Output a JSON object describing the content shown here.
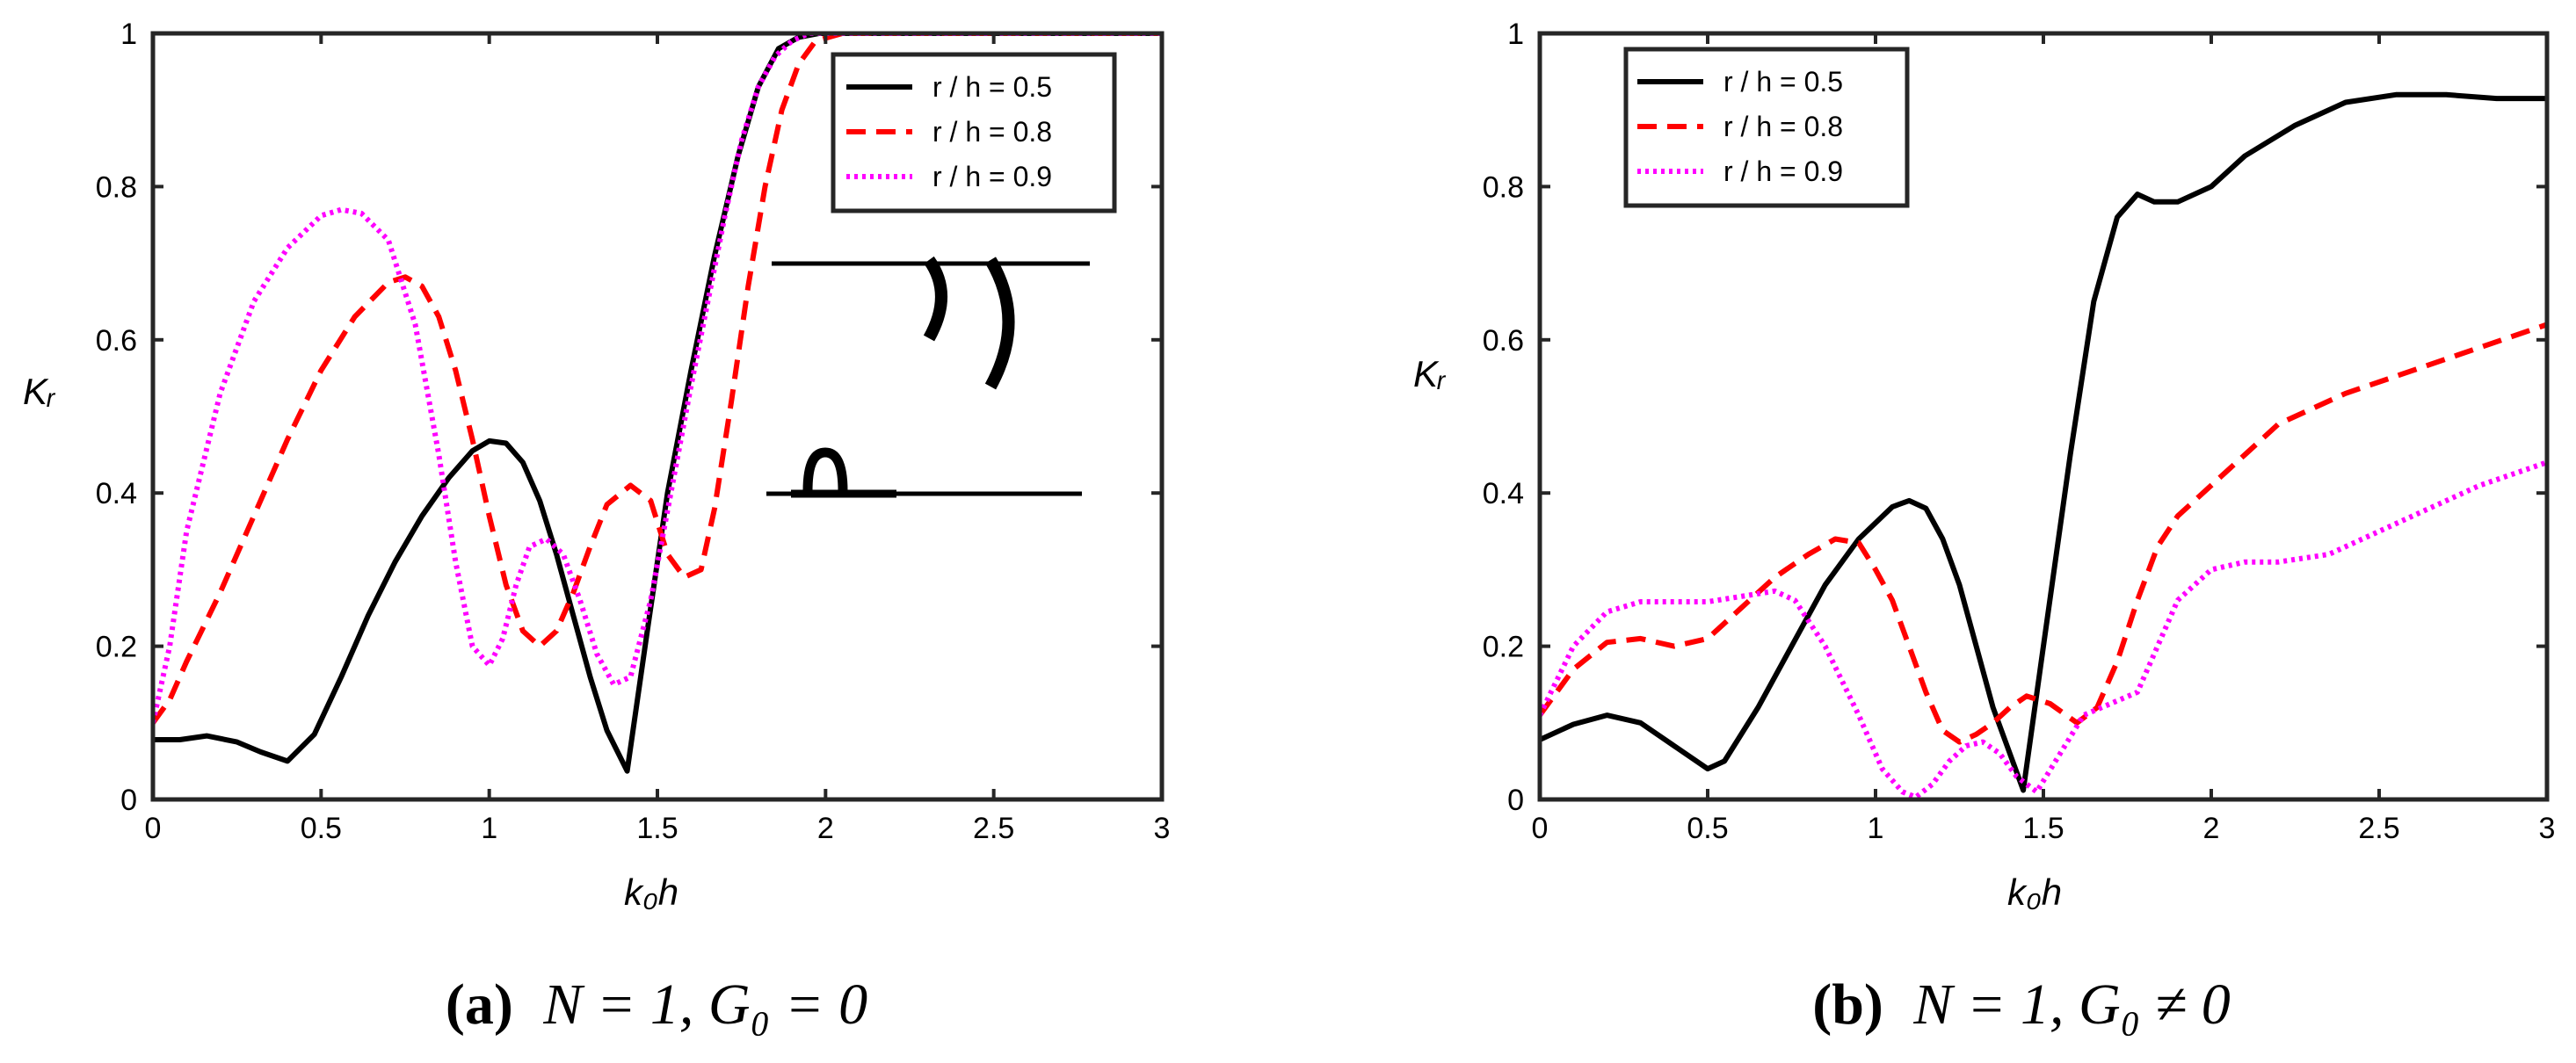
{
  "chart_data": [
    {
      "type": "line",
      "caption": {
        "label": "(a)",
        "text": "N = 1, G₀ = 0"
      },
      "xlabel": "k₀h",
      "ylabel": "Kᵣ",
      "xlim": [
        0,
        3
      ],
      "ylim": [
        0,
        1
      ],
      "xticks": [
        0,
        0.5,
        1,
        1.5,
        2,
        2.5,
        3
      ],
      "xtick_labels": [
        "0",
        "0.5",
        "1",
        "1.5",
        "2",
        "2.5",
        "3"
      ],
      "yticks": [
        0,
        0.2,
        0.4,
        0.6,
        0.8,
        1
      ],
      "ytick_labels": [
        "0",
        "0.2",
        "0.4",
        "0.6",
        "0.8",
        "1"
      ],
      "legend_position": "top-right",
      "inset": "schematic of two curved plates above and a semicircular plate on the lower line",
      "series": [
        {
          "name": "r / h = 0.5",
          "color": "#000000",
          "style": "solid",
          "x": [
            0,
            0.08,
            0.16,
            0.25,
            0.32,
            0.4,
            0.48,
            0.56,
            0.64,
            0.72,
            0.8,
            0.88,
            0.95,
            1.0,
            1.05,
            1.1,
            1.15,
            1.2,
            1.25,
            1.3,
            1.35,
            1.41,
            1.47,
            1.53,
            1.6,
            1.67,
            1.74,
            1.8,
            1.86,
            1.92,
            1.98,
            2.05,
            2.2,
            2.5,
            3.0
          ],
          "y": [
            0.078,
            0.078,
            0.083,
            0.075,
            0.062,
            0.05,
            0.085,
            0.16,
            0.24,
            0.31,
            0.37,
            0.42,
            0.455,
            0.468,
            0.465,
            0.44,
            0.39,
            0.32,
            0.24,
            0.16,
            0.09,
            0.037,
            0.22,
            0.4,
            0.56,
            0.71,
            0.84,
            0.93,
            0.98,
            0.995,
            1.0,
            1.0,
            1.0,
            1.0,
            1.0
          ]
        },
        {
          "name": "r / h = 0.8",
          "color": "#ff0000",
          "style": "dashed",
          "x": [
            0,
            0.05,
            0.1,
            0.2,
            0.3,
            0.4,
            0.5,
            0.6,
            0.7,
            0.75,
            0.8,
            0.85,
            0.9,
            0.95,
            1.0,
            1.05,
            1.1,
            1.15,
            1.2,
            1.25,
            1.3,
            1.35,
            1.42,
            1.48,
            1.53,
            1.58,
            1.63,
            1.67,
            1.72,
            1.77,
            1.82,
            1.87,
            1.92,
            1.97,
            2.05,
            2.2,
            3.0
          ],
          "y": [
            0.1,
            0.13,
            0.18,
            0.27,
            0.37,
            0.47,
            0.56,
            0.63,
            0.675,
            0.682,
            0.67,
            0.63,
            0.56,
            0.47,
            0.37,
            0.28,
            0.22,
            0.2,
            0.22,
            0.27,
            0.33,
            0.385,
            0.41,
            0.39,
            0.32,
            0.29,
            0.3,
            0.38,
            0.52,
            0.67,
            0.8,
            0.9,
            0.96,
            0.99,
            1.0,
            1.0,
            1.0
          ]
        },
        {
          "name": "r / h = 0.9",
          "color": "#ff00ff",
          "style": "dotted",
          "x": [
            0,
            0.05,
            0.1,
            0.2,
            0.3,
            0.4,
            0.5,
            0.56,
            0.62,
            0.7,
            0.78,
            0.85,
            0.9,
            0.95,
            1.0,
            1.04,
            1.08,
            1.12,
            1.17,
            1.22,
            1.27,
            1.32,
            1.37,
            1.42,
            1.48,
            1.54,
            1.6,
            1.65,
            1.7,
            1.75,
            1.8,
            1.85,
            1.9,
            1.95,
            2.0,
            2.1,
            3.0
          ],
          "y": [
            0.1,
            0.2,
            0.35,
            0.53,
            0.65,
            0.72,
            0.762,
            0.77,
            0.765,
            0.73,
            0.62,
            0.45,
            0.31,
            0.2,
            0.175,
            0.21,
            0.28,
            0.33,
            0.34,
            0.32,
            0.26,
            0.19,
            0.15,
            0.16,
            0.26,
            0.4,
            0.54,
            0.65,
            0.76,
            0.86,
            0.93,
            0.97,
            0.99,
            1.0,
            1.0,
            1.0,
            1.0
          ]
        }
      ]
    },
    {
      "type": "line",
      "caption": {
        "label": "(b)",
        "text": "N = 1, G₀ ≠ 0"
      },
      "xlabel": "k₀h",
      "ylabel": "Kᵣ",
      "xlim": [
        0,
        3
      ],
      "ylim": [
        0,
        1
      ],
      "xticks": [
        0,
        0.5,
        1,
        1.5,
        2,
        2.5,
        3
      ],
      "xtick_labels": [
        "0",
        "0.5",
        "1",
        "1.5",
        "2",
        "2.5",
        "3"
      ],
      "yticks": [
        0,
        0.2,
        0.4,
        0.6,
        0.8,
        1
      ],
      "ytick_labels": [
        "0",
        "0.2",
        "0.4",
        "0.6",
        "0.8",
        "1"
      ],
      "legend_position": "top-left",
      "series": [
        {
          "name": "r / h = 0.5",
          "color": "#000000",
          "style": "solid",
          "x": [
            0,
            0.1,
            0.2,
            0.3,
            0.4,
            0.5,
            0.55,
            0.65,
            0.75,
            0.85,
            0.95,
            1.05,
            1.1,
            1.15,
            1.2,
            1.25,
            1.3,
            1.35,
            1.44,
            1.5,
            1.58,
            1.65,
            1.72,
            1.78,
            1.83,
            1.9,
            2.0,
            2.1,
            2.25,
            2.4,
            2.55,
            2.7,
            2.85,
            3.0
          ],
          "y": [
            0.078,
            0.098,
            0.11,
            0.1,
            0.07,
            0.04,
            0.05,
            0.12,
            0.2,
            0.28,
            0.34,
            0.382,
            0.39,
            0.38,
            0.34,
            0.28,
            0.2,
            0.12,
            0.012,
            0.2,
            0.45,
            0.65,
            0.76,
            0.79,
            0.78,
            0.78,
            0.8,
            0.84,
            0.88,
            0.91,
            0.92,
            0.92,
            0.915,
            0.915
          ]
        },
        {
          "name": "r / h = 0.8",
          "color": "#ff0000",
          "style": "dashed",
          "x": [
            0,
            0.1,
            0.2,
            0.3,
            0.4,
            0.5,
            0.6,
            0.7,
            0.8,
            0.88,
            0.95,
            1.0,
            1.05,
            1.1,
            1.15,
            1.2,
            1.25,
            1.3,
            1.35,
            1.4,
            1.45,
            1.52,
            1.6,
            1.66,
            1.72,
            1.78,
            1.84,
            1.9,
            2.0,
            2.1,
            2.2,
            2.4,
            2.6,
            2.8,
            3.0
          ],
          "y": [
            0.11,
            0.17,
            0.205,
            0.21,
            0.2,
            0.21,
            0.25,
            0.29,
            0.32,
            0.34,
            0.335,
            0.3,
            0.26,
            0.2,
            0.14,
            0.09,
            0.075,
            0.085,
            0.1,
            0.12,
            0.135,
            0.125,
            0.1,
            0.12,
            0.18,
            0.26,
            0.33,
            0.37,
            0.41,
            0.45,
            0.49,
            0.53,
            0.56,
            0.59,
            0.62
          ]
        },
        {
          "name": "r / h = 0.9",
          "color": "#ff00ff",
          "style": "dotted",
          "x": [
            0,
            0.1,
            0.2,
            0.3,
            0.4,
            0.5,
            0.6,
            0.7,
            0.76,
            0.85,
            0.95,
            1.02,
            1.08,
            1.12,
            1.17,
            1.22,
            1.27,
            1.32,
            1.37,
            1.42,
            1.48,
            1.55,
            1.62,
            1.7,
            1.78,
            1.84,
            1.9,
            2.0,
            2.1,
            2.2,
            2.35,
            2.5,
            2.65,
            2.8,
            3.0
          ],
          "y": [
            0.11,
            0.2,
            0.245,
            0.258,
            0.258,
            0.258,
            0.265,
            0.272,
            0.26,
            0.2,
            0.11,
            0.04,
            0.01,
            0.003,
            0.02,
            0.05,
            0.07,
            0.075,
            0.06,
            0.03,
            0.01,
            0.06,
            0.11,
            0.125,
            0.14,
            0.2,
            0.26,
            0.3,
            0.31,
            0.31,
            0.32,
            0.35,
            0.38,
            0.41,
            0.44
          ]
        }
      ]
    }
  ]
}
